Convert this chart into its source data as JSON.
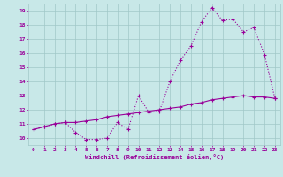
{
  "hours": [
    0,
    1,
    2,
    3,
    4,
    5,
    6,
    7,
    8,
    9,
    10,
    11,
    12,
    13,
    14,
    15,
    16,
    17,
    18,
    19,
    20,
    21,
    22,
    23
  ],
  "temperature": [
    10.6,
    10.8,
    11.0,
    11.1,
    10.4,
    9.9,
    9.9,
    10.0,
    11.1,
    10.6,
    13.0,
    11.8,
    11.9,
    14.0,
    15.5,
    16.5,
    18.2,
    19.2,
    18.3,
    18.4,
    17.5,
    17.8,
    15.9,
    12.8
  ],
  "windchill": [
    10.6,
    10.8,
    11.0,
    11.1,
    11.1,
    11.2,
    11.3,
    11.5,
    11.6,
    11.7,
    11.8,
    11.9,
    12.0,
    12.1,
    12.2,
    12.4,
    12.5,
    12.7,
    12.8,
    12.9,
    13.0,
    12.9,
    12.9,
    12.8
  ],
  "line_color": "#990099",
  "bg_color": "#c8e8e8",
  "grid_color": "#a0c8c8",
  "xlabel": "Windchill (Refroidissement éolien,°C)",
  "ylim": [
    9.5,
    19.5
  ],
  "xlim": [
    -0.5,
    23.5
  ],
  "yticks": [
    10,
    11,
    12,
    13,
    14,
    15,
    16,
    17,
    18,
    19
  ],
  "xticks": [
    0,
    1,
    2,
    3,
    4,
    5,
    6,
    7,
    8,
    9,
    10,
    11,
    12,
    13,
    14,
    15,
    16,
    17,
    18,
    19,
    20,
    21,
    22,
    23
  ]
}
